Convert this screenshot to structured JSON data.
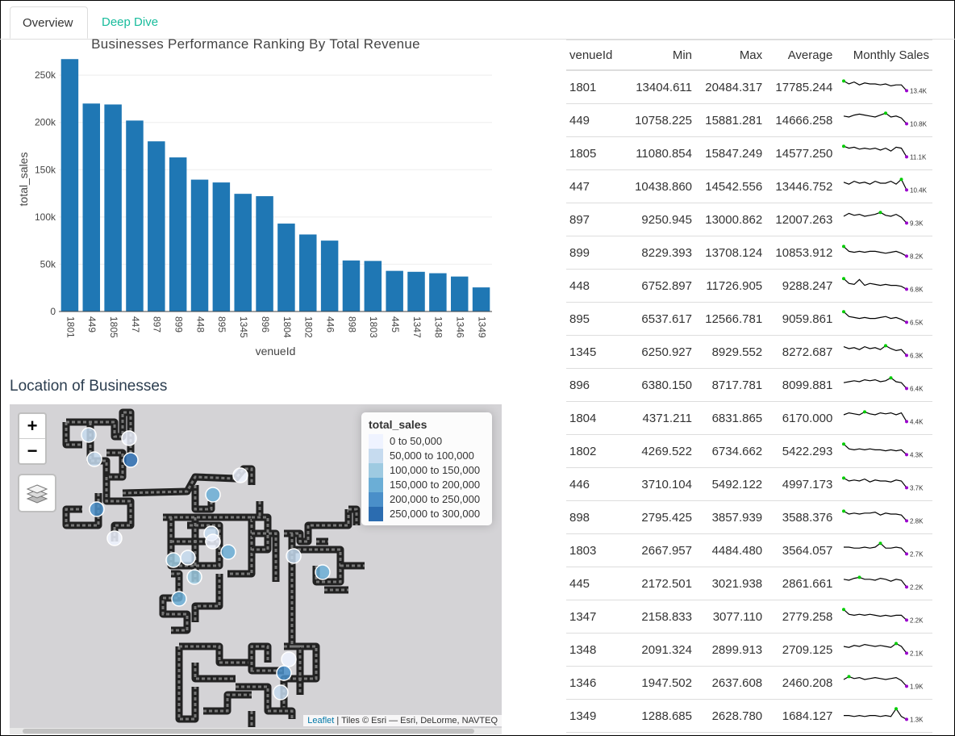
{
  "tabs": [
    {
      "label": "Overview",
      "active": true
    },
    {
      "label": "Deep Dive",
      "active": false
    }
  ],
  "chart_data": {
    "type": "bar",
    "title": "Businesses Performance Ranking By Total Revenue",
    "xlabel": "venueId",
    "ylabel": "total_sales",
    "ylim": [
      0,
      280000
    ],
    "yticks": [
      "0",
      "50k",
      "100k",
      "150k",
      "200k",
      "250k"
    ],
    "ytick_values": [
      0,
      50000,
      100000,
      150000,
      200000,
      250000
    ],
    "categories": [
      "1801",
      "449",
      "1805",
      "447",
      "897",
      "899",
      "448",
      "895",
      "1345",
      "896",
      "1804",
      "1802",
      "446",
      "898",
      "1803",
      "445",
      "1347",
      "1348",
      "1346",
      "1349"
    ],
    "values": [
      267000,
      220000,
      219000,
      202000,
      180000,
      163000,
      139500,
      136500,
      124500,
      122000,
      93000,
      81500,
      75000,
      54000,
      53500,
      43000,
      42000,
      40500,
      37000,
      25500
    ],
    "color": "#1f77b4",
    "grid": true
  },
  "map": {
    "title": "Location of Businesses",
    "zoom_in": "+",
    "zoom_out": "−",
    "legend": {
      "title": "total_sales",
      "items": [
        {
          "label": "0 to 50,000",
          "color": "#eff3ff"
        },
        {
          "label": "50,000 to 100,000",
          "color": "#c6dbef"
        },
        {
          "label": "100,000 to 150,000",
          "color": "#9ecae1"
        },
        {
          "label": "150,000 to 200,000",
          "color": "#6baed6"
        },
        {
          "label": "200,000 to 250,000",
          "color": "#4a8fc9"
        },
        {
          "label": "250,000 to 300,000",
          "color": "#2b6cb0"
        }
      ]
    },
    "attribution_link": "Leaflet",
    "attribution_text": " | Tiles © Esri — Esri, DeLorme, NAVTEQ"
  },
  "table": {
    "headers": [
      "venueId",
      "Min",
      "Max",
      "Average",
      "Monthly Sales"
    ],
    "rows": [
      {
        "id": "1801",
        "min": "13404.611",
        "max": "20484.317",
        "avg": "17785.244",
        "spark_label": "13.4K"
      },
      {
        "id": "449",
        "min": "10758.225",
        "max": "15881.281",
        "avg": "14666.258",
        "spark_label": "10.8K"
      },
      {
        "id": "1805",
        "min": "11080.854",
        "max": "15847.249",
        "avg": "14577.250",
        "spark_label": "11.1K"
      },
      {
        "id": "447",
        "min": "10438.860",
        "max": "14542.556",
        "avg": "13446.752",
        "spark_label": "10.4K"
      },
      {
        "id": "897",
        "min": "9250.945",
        "max": "13000.862",
        "avg": "12007.263",
        "spark_label": "9.3K"
      },
      {
        "id": "899",
        "min": "8229.393",
        "max": "13708.124",
        "avg": "10853.912",
        "spark_label": "8.2K"
      },
      {
        "id": "448",
        "min": "6752.897",
        "max": "11726.905",
        "avg": "9288.247",
        "spark_label": "6.8K"
      },
      {
        "id": "895",
        "min": "6537.617",
        "max": "12566.781",
        "avg": "9059.861",
        "spark_label": "6.5K"
      },
      {
        "id": "1345",
        "min": "6250.927",
        "max": "8929.552",
        "avg": "8272.687",
        "spark_label": "6.3K"
      },
      {
        "id": "896",
        "min": "6380.150",
        "max": "8717.781",
        "avg": "8099.881",
        "spark_label": "6.4K"
      },
      {
        "id": "1804",
        "min": "4371.211",
        "max": "6831.865",
        "avg": "6170.000",
        "spark_label": "4.4K"
      },
      {
        "id": "1802",
        "min": "4269.522",
        "max": "6734.662",
        "avg": "5422.293",
        "spark_label": "4.3K"
      },
      {
        "id": "446",
        "min": "3710.104",
        "max": "5492.122",
        "avg": "4997.173",
        "spark_label": "3.7K"
      },
      {
        "id": "898",
        "min": "2795.425",
        "max": "3857.939",
        "avg": "3588.376",
        "spark_label": "2.8K"
      },
      {
        "id": "1803",
        "min": "2667.957",
        "max": "4484.480",
        "avg": "3564.057",
        "spark_label": "2.7K"
      },
      {
        "id": "445",
        "min": "2172.501",
        "max": "3021.938",
        "avg": "2861.661",
        "spark_label": "2.2K"
      },
      {
        "id": "1347",
        "min": "2158.833",
        "max": "3077.110",
        "avg": "2779.258",
        "spark_label": "2.2K"
      },
      {
        "id": "1348",
        "min": "2091.324",
        "max": "2899.913",
        "avg": "2709.125",
        "spark_label": "2.1K"
      },
      {
        "id": "1346",
        "min": "1947.502",
        "max": "2637.608",
        "avg": "2460.208",
        "spark_label": "1.9K"
      },
      {
        "id": "1349",
        "min": "1288.685",
        "max": "2628.780",
        "avg": "1684.127",
        "spark_label": "1.3K"
      }
    ]
  },
  "colors": {
    "accent": "#18bc9c",
    "bar": "#1f77b4",
    "spark_max": "#00cc00",
    "spark_last": "#9900cc"
  }
}
